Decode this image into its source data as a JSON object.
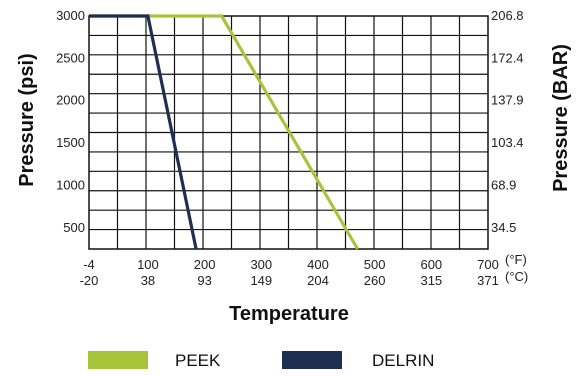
{
  "chart_data": {
    "type": "line",
    "xlabel": "Temperature",
    "ylabel_left": "Pressure (psi)",
    "ylabel_right": "Pressure (BAR)",
    "x_unit_f": "(°F)",
    "x_unit_c": "(°C)",
    "x_ticks_f": [
      "-4",
      "100",
      "200",
      "300",
      "400",
      "500",
      "600",
      "700"
    ],
    "x_ticks_c": [
      "-20",
      "38",
      "93",
      "149",
      "204",
      "260",
      "315",
      "371"
    ],
    "x_tick_values_f": [
      -4,
      100,
      200,
      300,
      400,
      500,
      600,
      700
    ],
    "xlim": [
      -4,
      700
    ],
    "ylim": [
      250,
      3000
    ],
    "y_ticks_left": [
      "3000",
      "2500",
      "2000",
      "1500",
      "1000",
      "500"
    ],
    "y_tick_values_left": [
      3000,
      2500,
      2000,
      1500,
      1000,
      500
    ],
    "y_ticks_right": [
      "206.8",
      "172.4",
      "137.9",
      "103.4",
      "68.9",
      "34.5"
    ],
    "grid": true,
    "series": [
      {
        "name": "PEEK",
        "color": "#a8c43a",
        "x": [
          -4,
          230,
          470
        ],
        "y": [
          3000,
          3000,
          250
        ]
      },
      {
        "name": "DELRIN",
        "color": "#1e2f52",
        "x": [
          -4,
          100,
          185
        ],
        "y": [
          3000,
          3000,
          250
        ]
      }
    ],
    "legend": [
      {
        "label": "PEEK",
        "color": "#a8c43a"
      },
      {
        "label": "DELRIN",
        "color": "#1e2f52"
      }
    ],
    "legend_position": "bottom"
  }
}
